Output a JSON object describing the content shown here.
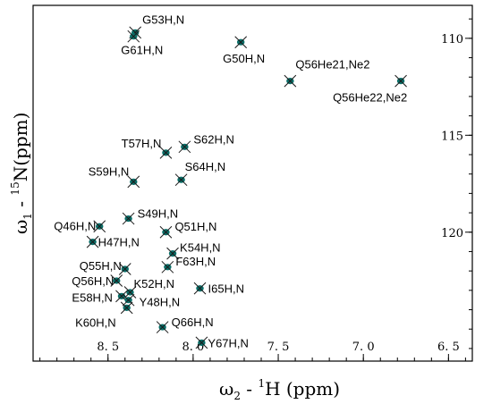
{
  "chart_data": {
    "type": "scatter",
    "title": "",
    "xlabel": {
      "main": "ω",
      "sub": "2",
      "rest": " - ",
      "sup": "1",
      "unit": "H  (ppm)"
    },
    "ylabel": {
      "main": "ω",
      "sub": "1",
      "rest": " - ",
      "sup": "15",
      "unit": "N(ppm)"
    },
    "xlim": [
      8.94,
      6.36
    ],
    "ylim": [
      108.3,
      126.65
    ],
    "x_reversed": true,
    "y_reversed": true,
    "x_ticks": [
      {
        "value": 8.5,
        "label": "8. 5"
      },
      {
        "value": 8.0,
        "label": "8. 0"
      },
      {
        "value": 7.5,
        "label": "7. 5"
      },
      {
        "value": 7.0,
        "label": "7. 0"
      },
      {
        "value": 6.5,
        "label": "6. 5"
      }
    ],
    "y_ticks": [
      {
        "value": 110,
        "label": "110"
      },
      {
        "value": 115,
        "label": "115"
      },
      {
        "value": 120,
        "label": "120"
      }
    ],
    "peak_color": "#0a6e68",
    "peaks": [
      {
        "label": "G53H,N",
        "x": 8.34,
        "y": 109.7
      },
      {
        "label": "G61H,N",
        "x": 8.35,
        "y": 109.9
      },
      {
        "label": "G50H,N",
        "x": 7.72,
        "y": 110.2
      },
      {
        "label": "Q56He21,Ne2",
        "x": 7.43,
        "y": 112.2
      },
      {
        "label": "Q56He22,Ne2",
        "x": 6.78,
        "y": 112.2
      },
      {
        "label": "T57H,N",
        "x": 8.16,
        "y": 115.9
      },
      {
        "label": "S62H,N",
        "x": 8.05,
        "y": 115.6
      },
      {
        "label": "S59H,N",
        "x": 8.35,
        "y": 117.4
      },
      {
        "label": "S64H,N",
        "x": 8.07,
        "y": 117.3
      },
      {
        "label": "S49H,N",
        "x": 8.38,
        "y": 119.3
      },
      {
        "label": "Q46H,N",
        "x": 8.55,
        "y": 119.7
      },
      {
        "label": "Q51H,N",
        "x": 8.16,
        "y": 120.0
      },
      {
        "label": "H47H,N",
        "x": 8.59,
        "y": 120.5
      },
      {
        "label": "K54H,N",
        "x": 8.12,
        "y": 121.1
      },
      {
        "label": "Q55H,N",
        "x": 8.4,
        "y": 121.9
      },
      {
        "label": "F63H,N",
        "x": 8.15,
        "y": 121.8
      },
      {
        "label": "Q56H,N",
        "x": 8.45,
        "y": 122.5
      },
      {
        "label": "I65H,N",
        "x": 7.96,
        "y": 122.9
      },
      {
        "label": "K52H,N",
        "x": 8.37,
        "y": 123.1
      },
      {
        "label": "E58H,N",
        "x": 8.42,
        "y": 123.3
      },
      {
        "label": "Y48H,N",
        "x": 8.38,
        "y": 123.5
      },
      {
        "label": "K60H,N",
        "x": 8.39,
        "y": 123.9
      },
      {
        "label": "Q66H,N",
        "x": 8.18,
        "y": 124.9
      },
      {
        "label": "Y67H,N",
        "x": 7.95,
        "y": 125.7
      }
    ]
  }
}
